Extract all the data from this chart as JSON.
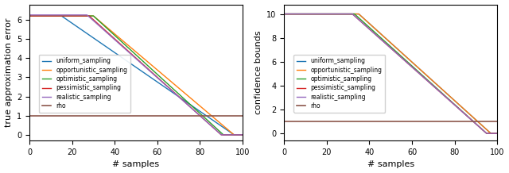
{
  "left": {
    "ylabel": "true approximation error",
    "xlabel": "# samples",
    "ylim": [
      -0.3,
      6.8
    ],
    "xlim": [
      0,
      100
    ],
    "yticks": [
      0,
      1,
      2,
      3,
      4,
      5,
      6
    ],
    "xticks": [
      0,
      20,
      40,
      60,
      80,
      100
    ],
    "rho_value": 1.0,
    "lines": {
      "uniform_sampling": {
        "color": "#1f77b4"
      },
      "opportunistic_sampling": {
        "color": "#ff7f0e"
      },
      "optimistic_sampling": {
        "color": "#2ca02c"
      },
      "pessimistic_sampling": {
        "color": "#d62728"
      },
      "realistic_sampling": {
        "color": "#9467bd"
      },
      "rho": {
        "color": "#8c564b"
      }
    }
  },
  "right": {
    "ylabel": "confidence bounds",
    "xlabel": "# samples",
    "ylim": [
      -0.6,
      10.8
    ],
    "xlim": [
      0,
      100
    ],
    "yticks": [
      0,
      2,
      4,
      6,
      8,
      10
    ],
    "xticks": [
      0,
      20,
      40,
      60,
      80,
      100
    ],
    "rho_value": 1.0,
    "lines": {
      "uniform_sampling": {
        "color": "#1f77b4"
      },
      "opportunistic_sampling": {
        "color": "#ff7f0e"
      },
      "optimistic_sampling": {
        "color": "#2ca02c"
      },
      "pessimistic_sampling": {
        "color": "#d62728"
      },
      "realistic_sampling": {
        "color": "#9467bd"
      },
      "rho": {
        "color": "#8c564b"
      }
    }
  },
  "legend_labels": [
    "uniform_sampling",
    "opportunistic_sampling",
    "optimistic_sampling",
    "pessimistic_sampling",
    "realistic_sampling",
    "rho"
  ],
  "figsize": [
    6.4,
    2.18
  ],
  "dpi": 100
}
